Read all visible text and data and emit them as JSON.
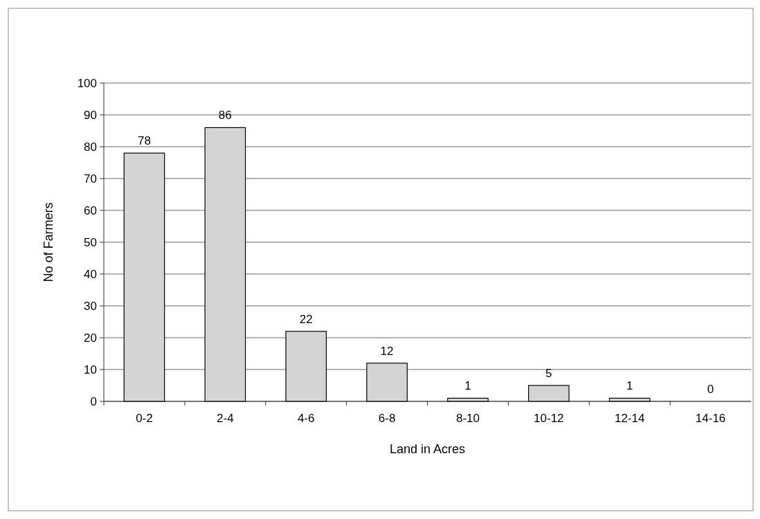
{
  "chart_data": {
    "type": "bar",
    "xlabel": "Land in Acres",
    "ylabel": "No of Farmers",
    "categories": [
      "0-2",
      "2-4",
      "4-6",
      "6-8",
      "8-10",
      "10-12",
      "12-14",
      "14-16"
    ],
    "values": [
      78,
      86,
      22,
      12,
      1,
      5,
      1,
      0
    ],
    "color": "#d4d4d4",
    "ylim": [
      0,
      100
    ],
    "yticks": [
      0,
      10,
      20,
      30,
      40,
      50,
      60,
      70,
      80,
      90,
      100
    ],
    "grid": "y",
    "data_labels": true
  }
}
